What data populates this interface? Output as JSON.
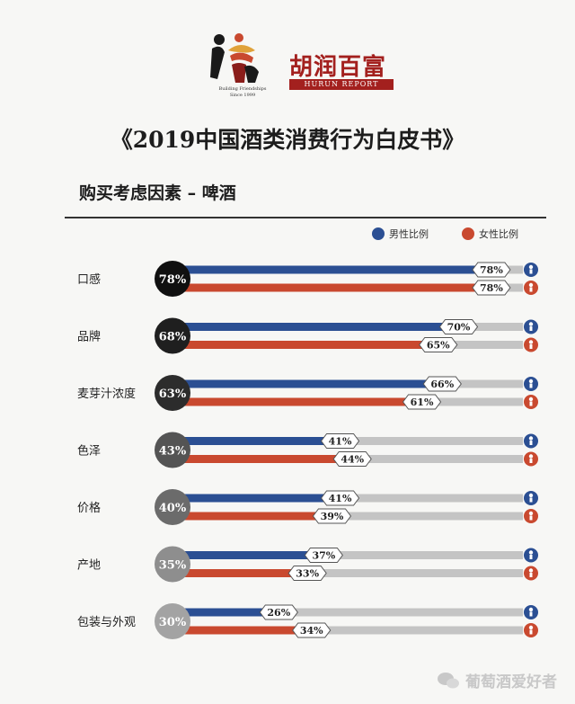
{
  "logo": {
    "tagline_1": "Building Friendships",
    "tagline_2": "Since 1999"
  },
  "brand": {
    "name_cn": "胡润百富",
    "name_en": "HURUN REPORT"
  },
  "title": "《2019中国酒类消费行为白皮书》",
  "subtitle": "购买考虑因素 – 啤酒",
  "legend": {
    "male": "男性比例",
    "female": "女性比例"
  },
  "colors": {
    "male": "#2b4f93",
    "female": "#c9492f",
    "track": "#c4c4c4",
    "brand_red": "#a3201e"
  },
  "watermark": "葡萄酒爱好者",
  "chart_data": {
    "type": "bar",
    "title": "购买考虑因素 – 啤酒",
    "categories": [
      "口感",
      "品牌",
      "麦芽汁浓度",
      "色泽",
      "价格",
      "产地",
      "包装与外观"
    ],
    "overall": [
      "78%",
      "68%",
      "63%",
      "43%",
      "40%",
      "35%",
      "30%"
    ],
    "overall_values": [
      78,
      68,
      63,
      43,
      40,
      35,
      30
    ],
    "circle_colors": [
      "#101010",
      "#1f1f1f",
      "#2c2c2c",
      "#545454",
      "#6b6b6b",
      "#8e8e8e",
      "#a3a3a3"
    ],
    "series": [
      {
        "name": "男性比例",
        "values": [
          78,
          70,
          66,
          41,
          41,
          37,
          26
        ],
        "labels": [
          "78%",
          "70%",
          "66%",
          "41%",
          "41%",
          "37%",
          "26%"
        ]
      },
      {
        "name": "女性比例",
        "values": [
          78,
          65,
          61,
          44,
          39,
          33,
          34
        ],
        "labels": [
          "78%",
          "65%",
          "61%",
          "44%",
          "39%",
          "33%",
          "34%"
        ]
      }
    ],
    "ylim": [
      0,
      100
    ]
  }
}
